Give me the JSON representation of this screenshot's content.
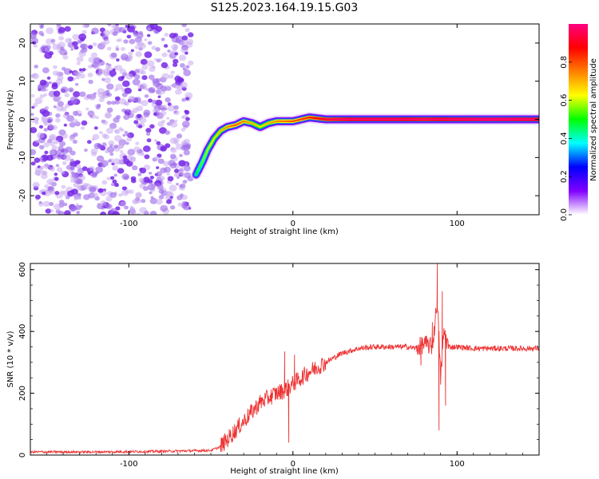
{
  "title": "S125.2023.164.19.15.G03",
  "chart_data": [
    {
      "type": "heatmap",
      "xlabel": "Height of straight line (km)",
      "ylabel": "Frequency (Hz)",
      "xlim": [
        -160,
        150
      ],
      "ylim": [
        -25,
        25
      ],
      "x_ticks": [
        -100,
        0,
        100
      ],
      "y_ticks": [
        -20,
        -10,
        0,
        10,
        20
      ],
      "grid": false,
      "noise_region": {
        "x_range": [
          -160,
          -60
        ],
        "y_range": [
          -25,
          25
        ],
        "amplitude": 0.2
      },
      "ridge": {
        "points": [
          {
            "x": -59,
            "y": -14.5,
            "amp": 0.35
          },
          {
            "x": -55,
            "y": -11,
            "amp": 0.4
          },
          {
            "x": -52,
            "y": -8,
            "amp": 0.45
          },
          {
            "x": -48,
            "y": -5,
            "amp": 0.5
          },
          {
            "x": -44,
            "y": -3,
            "amp": 0.55
          },
          {
            "x": -40,
            "y": -2,
            "amp": 0.6
          },
          {
            "x": -35,
            "y": -1.5,
            "amp": 0.65
          },
          {
            "x": -30,
            "y": -0.5,
            "amp": 0.6
          },
          {
            "x": -25,
            "y": -1.0,
            "amp": 0.55
          },
          {
            "x": -20,
            "y": -2.0,
            "amp": 0.5
          },
          {
            "x": -15,
            "y": -1.0,
            "amp": 0.55
          },
          {
            "x": -10,
            "y": -0.5,
            "amp": 0.6
          },
          {
            "x": 0,
            "y": -0.5,
            "amp": 0.65
          },
          {
            "x": 10,
            "y": 0.5,
            "amp": 0.7
          },
          {
            "x": 20,
            "y": 0.0,
            "amp": 0.8
          },
          {
            "x": 40,
            "y": 0.0,
            "amp": 0.9
          },
          {
            "x": 60,
            "y": 0.0,
            "amp": 0.9
          },
          {
            "x": 80,
            "y": 0.0,
            "amp": 0.85
          },
          {
            "x": 100,
            "y": 0.0,
            "amp": 0.9
          },
          {
            "x": 120,
            "y": 0.0,
            "amp": 0.95
          },
          {
            "x": 150,
            "y": 0.0,
            "amp": 0.9
          }
        ]
      },
      "colorbar": {
        "label": "Normalized spectral amplitude",
        "ticks": [
          0.0,
          0.2,
          0.4,
          0.6,
          0.8
        ],
        "range": [
          0,
          1
        ],
        "colors": [
          "#ffffff",
          "#8000ff",
          "#0000ff",
          "#00ffff",
          "#00ff00",
          "#ffff00",
          "#ff8000",
          "#ff0000",
          "#ff0080"
        ]
      }
    },
    {
      "type": "line",
      "xlabel": "Height of straight line (km)",
      "ylabel": "SNR (10 * v/v)",
      "xlim": [
        -160,
        150
      ],
      "ylim": [
        0,
        620
      ],
      "x_ticks": [
        -100,
        0,
        100
      ],
      "y_ticks": [
        0,
        200,
        400,
        600
      ],
      "grid": false,
      "color": "#ee3333",
      "series": [
        {
          "x": [
            -160,
            -120,
            -80,
            -50,
            -45,
            -40,
            -35,
            -30,
            -25,
            -20,
            -15,
            -10,
            -5,
            0,
            5,
            10,
            20,
            30,
            40,
            50,
            60,
            70,
            75,
            80,
            85,
            88,
            90,
            92,
            95,
            100,
            110,
            120,
            130,
            140,
            150
          ],
          "values": [
            10,
            10,
            12,
            15,
            25,
            50,
            80,
            110,
            140,
            170,
            185,
            200,
            210,
            230,
            250,
            270,
            300,
            330,
            345,
            350,
            350,
            350,
            345,
            360,
            350,
            500,
            250,
            400,
            350,
            350,
            345,
            345,
            345,
            345,
            345
          ]
        }
      ],
      "spikes": [
        {
          "x": -5,
          "y": 335
        },
        {
          "x": -2.5,
          "y": 40
        },
        {
          "x": 1,
          "y": 325
        },
        {
          "x": 78,
          "y": 290
        },
        {
          "x": 85,
          "y": 430
        },
        {
          "x": 88,
          "y": 620
        },
        {
          "x": 89,
          "y": 80
        },
        {
          "x": 91,
          "y": 530
        },
        {
          "x": 93,
          "y": 160
        }
      ]
    }
  ]
}
